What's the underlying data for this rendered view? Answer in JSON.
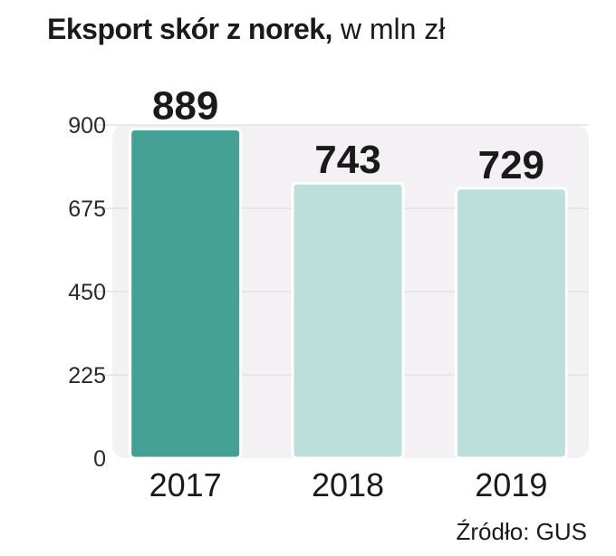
{
  "title": "Eksport skór z norek,",
  "title_unit": "w mln zł",
  "source": "Źródło: GUS",
  "chart_data": {
    "type": "bar",
    "categories": [
      "2017",
      "2018",
      "2019"
    ],
    "values": [
      889,
      743,
      729
    ],
    "data_labels": [
      "889",
      "743",
      "729"
    ],
    "yticks": [
      "0",
      "225",
      "450",
      "675",
      "900"
    ],
    "ylim": [
      0,
      900
    ],
    "grid": true,
    "colors": {
      "highlight": "#45a096",
      "default": "#bcdfdb",
      "plot_bg": "#f4f1f4"
    },
    "highlight_index": 0
  }
}
